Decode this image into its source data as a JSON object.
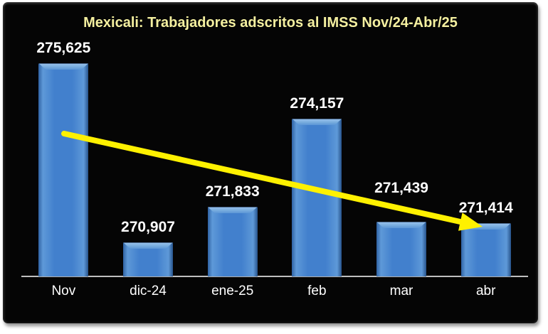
{
  "page": {
    "background_color": "#FFFFFF"
  },
  "panel": {
    "background_color": "#050505"
  },
  "chart_data": {
    "type": "bar",
    "title": "Mexicali: Trabajadores adscritos al IMSS Nov/24-Abr/25",
    "categories": [
      "Nov",
      "dic-24",
      "ene-25",
      "feb",
      "mar",
      "abr"
    ],
    "values": [
      275625,
      270907,
      271833,
      274157,
      271439,
      271414
    ],
    "value_labels": [
      "275,625",
      "270,907",
      "271,833",
      "274,157",
      "271,439",
      "271,414"
    ],
    "xlabel": "",
    "ylabel": "",
    "ylim": [
      270000,
      276000
    ],
    "grid": false,
    "legend": false,
    "annotations": [
      {
        "type": "arrow",
        "meaning": "downward-trend",
        "from_category": "Nov",
        "to_category": "abr",
        "color": "#FFF100"
      }
    ]
  },
  "colors": {
    "title_text": "#F5F0A0",
    "value_label_text": "#FFFFFF",
    "category_label_text": "#FFFFFF",
    "axis_line": "#C9C9C9",
    "bar_fill": "#4280CD",
    "bar_bevel_light": "#9CC4EE",
    "bar_edge_dark": "#2A578F",
    "arrow": "#FFF100"
  }
}
